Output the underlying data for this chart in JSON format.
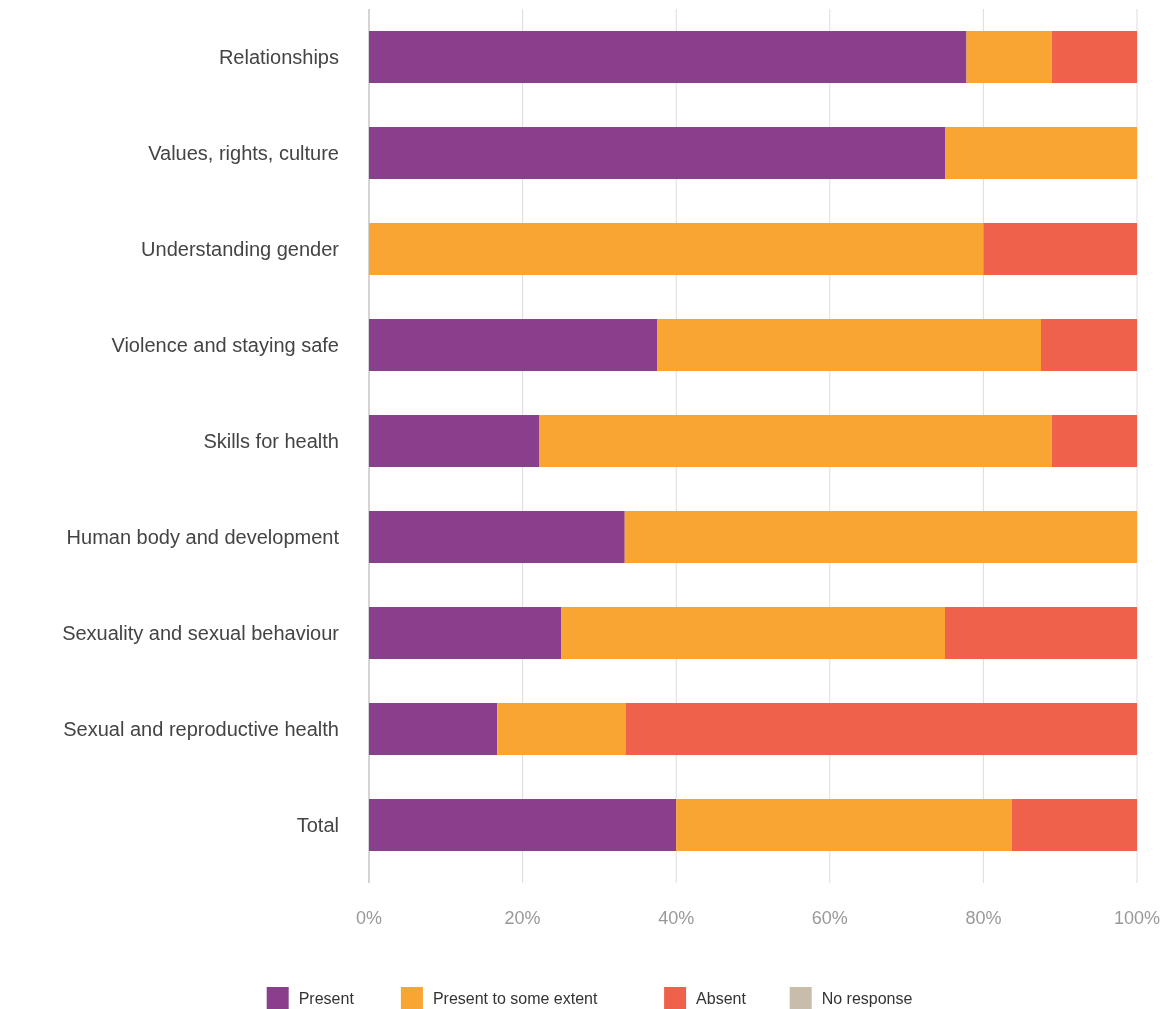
{
  "chart_data": {
    "type": "bar",
    "orientation": "horizontal",
    "stacked": true,
    "categories": [
      "Relationships",
      "Values, rights, culture",
      "Understanding gender",
      "Violence and staying safe",
      "Skills for health",
      "Human body and development",
      "Sexuality and sexual behaviour",
      "Sexual and reproductive health",
      "Total"
    ],
    "series": [
      {
        "name": "Present",
        "color": "#8a3f8c",
        "values": [
          77.8,
          75,
          0,
          37.5,
          22.2,
          33.3,
          25,
          16.7,
          40
        ]
      },
      {
        "name": "Present to some extent",
        "color": "#f8a534",
        "values": [
          11.1,
          25,
          80,
          50,
          66.7,
          66.7,
          50,
          16.7,
          43.7
        ]
      },
      {
        "name": "Absent",
        "color": "#f0614b",
        "values": [
          11.1,
          0,
          20,
          12.5,
          11.1,
          0,
          25,
          66.6,
          16.3
        ]
      },
      {
        "name": "No response",
        "color": "#c8bcab",
        "values": [
          0,
          0,
          0,
          0,
          0,
          0,
          0,
          0,
          0
        ]
      }
    ],
    "xlim": [
      0,
      100
    ],
    "xticks": [
      {
        "value": 0,
        "label": "0%"
      },
      {
        "value": 20,
        "label": "20%"
      },
      {
        "value": 40,
        "label": "40%"
      },
      {
        "value": 60,
        "label": "60%"
      },
      {
        "value": 80,
        "label": "80%"
      },
      {
        "value": 100,
        "label": "100%"
      }
    ],
    "grid": "x",
    "legend": "bottom"
  }
}
